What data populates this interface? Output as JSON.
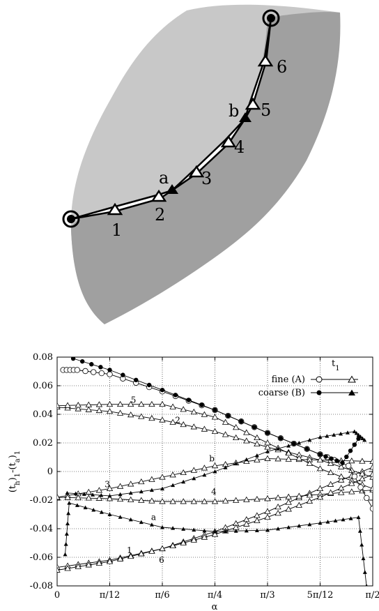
{
  "diagram": {
    "labels": {
      "n1": "1",
      "n2": "2",
      "n3": "3",
      "n4": "4",
      "n5": "5",
      "n6": "6",
      "a": "a",
      "b": "b"
    },
    "colors": {
      "light_region": "#c8c8c8",
      "dark_region": "#a0a0a0"
    }
  },
  "chart_data": {
    "type": "line",
    "xlabel": "α",
    "ylabel": "(t_h)_1-(t_a)_1",
    "xlim": [
      0,
      1.5708
    ],
    "ylim": [
      -0.08,
      0.08
    ],
    "grid": true,
    "legend_position": "top-right",
    "xticks": [
      {
        "label": "0",
        "value": 0
      },
      {
        "label": "π/12",
        "value": 0.2618
      },
      {
        "label": "π/6",
        "value": 0.5236
      },
      {
        "label": "π/4",
        "value": 0.7854
      },
      {
        "label": "π/3",
        "value": 1.0472
      },
      {
        "label": "5π/12",
        "value": 1.309
      },
      {
        "label": "π/2",
        "value": 1.5708
      }
    ],
    "yticks": [
      "-0.08",
      "-0.06",
      "-0.04",
      "-0.02",
      "0",
      "0.02",
      "0.04",
      "0.06",
      "0.08"
    ],
    "legend": {
      "title": "t_1",
      "entries": [
        {
          "label": "fine (A)",
          "marker": "open"
        },
        {
          "label": "coarse (B)",
          "marker": "filled"
        }
      ]
    },
    "series": [
      {
        "name": "1",
        "marker": "open-triangle",
        "x": [
          0,
          0.2618,
          0.5236,
          0.7854,
          1.0472,
          1.309,
          1.5708
        ],
        "y": [
          -0.067,
          -0.062,
          -0.054,
          -0.042,
          -0.028,
          -0.012,
          0.003
        ]
      },
      {
        "name": "2",
        "marker": "open-triangle",
        "x": [
          0,
          0.2618,
          0.5236,
          0.7854,
          1.0472,
          1.309,
          1.5708
        ],
        "y": [
          0.045,
          0.042,
          0.036,
          0.028,
          0.017,
          0.008,
          -0.004
        ]
      },
      {
        "name": "3",
        "marker": "open-triangle",
        "x": [
          0,
          0.2618,
          0.5236,
          0.7854,
          1.0472,
          1.309,
          1.5708
        ],
        "y": [
          -0.018,
          -0.012,
          -0.004,
          0.004,
          0.009,
          0.008,
          0.007
        ]
      },
      {
        "name": "4",
        "marker": "open-triangle",
        "x": [
          0,
          0.2618,
          0.5236,
          0.7854,
          1.0472,
          1.309,
          1.5708
        ],
        "y": [
          -0.018,
          -0.019,
          -0.021,
          -0.021,
          -0.019,
          -0.016,
          -0.013
        ]
      },
      {
        "name": "5",
        "marker": "open-triangle",
        "x": [
          0,
          0.2618,
          0.5236,
          0.7854,
          1.0472,
          1.309,
          1.5708
        ],
        "y": [
          0.046,
          0.047,
          0.047,
          0.038,
          0.02,
          0.002,
          -0.012
        ]
      },
      {
        "name": "6",
        "marker": "open-triangle",
        "x": [
          0,
          0.2618,
          0.5236,
          0.7854,
          1.0472,
          1.309,
          1.5708
        ],
        "y": [
          -0.069,
          -0.063,
          -0.054,
          -0.044,
          -0.032,
          -0.018,
          -0.002
        ]
      },
      {
        "name": "a",
        "marker": "filled-triangle",
        "x": [
          0.04,
          0.06,
          0.2618,
          0.5236,
          0.7854,
          1.0472,
          1.309,
          1.5,
          1.54
        ],
        "y": [
          -0.058,
          -0.022,
          -0.03,
          -0.039,
          -0.042,
          -0.041,
          -0.036,
          -0.032,
          -0.08
        ]
      },
      {
        "name": "b",
        "marker": "filled-triangle",
        "x": [
          0.05,
          0.2618,
          0.5236,
          0.7854,
          1.0472,
          1.309,
          1.48,
          1.53
        ],
        "y": [
          -0.015,
          -0.017,
          -0.012,
          0.0,
          0.014,
          0.024,
          0.028,
          0.022
        ]
      },
      {
        "name": "fine (A)",
        "marker": "open-circle",
        "x": [
          0.03,
          0.1,
          0.2618,
          0.5236,
          0.7854,
          1.0472,
          1.309,
          1.45,
          1.5708
        ],
        "y": [
          0.071,
          0.071,
          0.068,
          0.056,
          0.043,
          0.027,
          0.012,
          0.004,
          -0.026
        ]
      },
      {
        "name": "coarse (B)",
        "marker": "filled-circle",
        "x": [
          0.08,
          0.2618,
          0.5236,
          0.7854,
          1.0472,
          1.309,
          1.42,
          1.5
        ],
        "y": [
          0.079,
          0.071,
          0.057,
          0.043,
          0.027,
          0.012,
          0.006,
          0.023
        ]
      }
    ],
    "curve_labels": [
      {
        "text": "1",
        "x": 0.36,
        "y": -0.057
      },
      {
        "text": "2",
        "x": 0.6,
        "y": 0.034
      },
      {
        "text": "3",
        "x": 0.25,
        "y": -0.011
      },
      {
        "text": "4",
        "x": 0.78,
        "y": -0.016
      },
      {
        "text": "5",
        "x": 0.38,
        "y": 0.048
      },
      {
        "text": "6",
        "x": 0.52,
        "y": -0.064
      },
      {
        "text": "a",
        "x": 0.48,
        "y": -0.034
      },
      {
        "text": "b",
        "x": 0.77,
        "y": 0.007
      }
    ]
  }
}
